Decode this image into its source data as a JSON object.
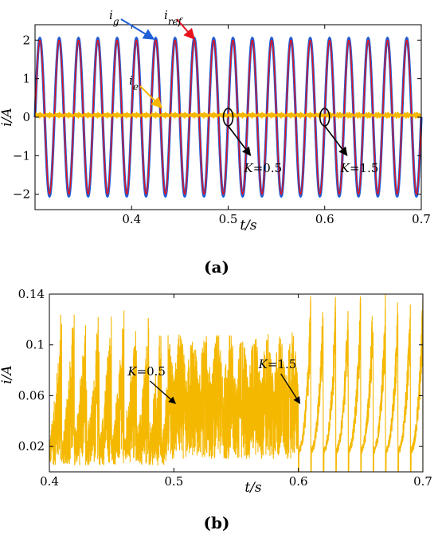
{
  "chart_data": [
    {
      "panel": "(a)",
      "type": "line",
      "caption": "(a)",
      "xlabel": "t/s",
      "ylabel": "i/A",
      "xlim": [
        0.3,
        0.7
      ],
      "ylim": [
        -2.4,
        2.4
      ],
      "xticks": [
        0.4,
        0.5,
        0.6,
        0.7
      ],
      "yticks": [
        -2,
        -1,
        0,
        1,
        2
      ],
      "grid": false,
      "frequency_hz": 50,
      "series": [
        {
          "name": "i_g",
          "color": "#1f5fd8",
          "amplitude": 2.05,
          "shape": "sine"
        },
        {
          "name": "i_ref",
          "color": "#e8101a",
          "amplitude": 2.0,
          "shape": "sine"
        },
        {
          "name": "i_e",
          "color": "#f5b800",
          "mean": 0.05,
          "ripple_K05": 0.13,
          "ripple_K15": 0.14,
          "shape": "ripple"
        }
      ],
      "annotations": [
        {
          "label_prefix": "K",
          "label_value": "=0.5",
          "x": 0.5,
          "y": 0.0
        },
        {
          "label_prefix": "K",
          "label_value": "=1.5",
          "x": 0.6,
          "y": 0.0
        }
      ],
      "series_labels": [
        {
          "main": "i",
          "sub": "g"
        },
        {
          "main": "i",
          "sub": "ref"
        },
        {
          "main": "i",
          "sub": "e"
        }
      ]
    },
    {
      "panel": "(b)",
      "type": "line",
      "caption": "(b)",
      "xlabel": "t/s",
      "ylabel": "i/A",
      "xlim": [
        0.4,
        0.7
      ],
      "ylim": [
        0.0,
        0.14
      ],
      "xticks": [
        0.4,
        0.5,
        0.6,
        0.7
      ],
      "xtick_labels": [
        "0.4",
        "0.5",
        "0.6",
        "0.7"
      ],
      "yticks": [
        0.02,
        0.06,
        0.1,
        0.14
      ],
      "ytick_labels": [
        "0.02",
        "0.06",
        "0.1",
        "0.14"
      ],
      "grid": false,
      "series": [
        {
          "name": "i_e",
          "color": "#f5b800",
          "K05_range": [
            0.0,
            0.13
          ],
          "K15_range": [
            0.0,
            0.14
          ]
        }
      ],
      "annotations": [
        {
          "label_prefix": "K",
          "label_value": "=0.5",
          "x": 0.5,
          "y": 0.04
        },
        {
          "label_prefix": "K",
          "label_value": "=1.5",
          "x": 0.6,
          "y": 0.04
        }
      ]
    }
  ]
}
